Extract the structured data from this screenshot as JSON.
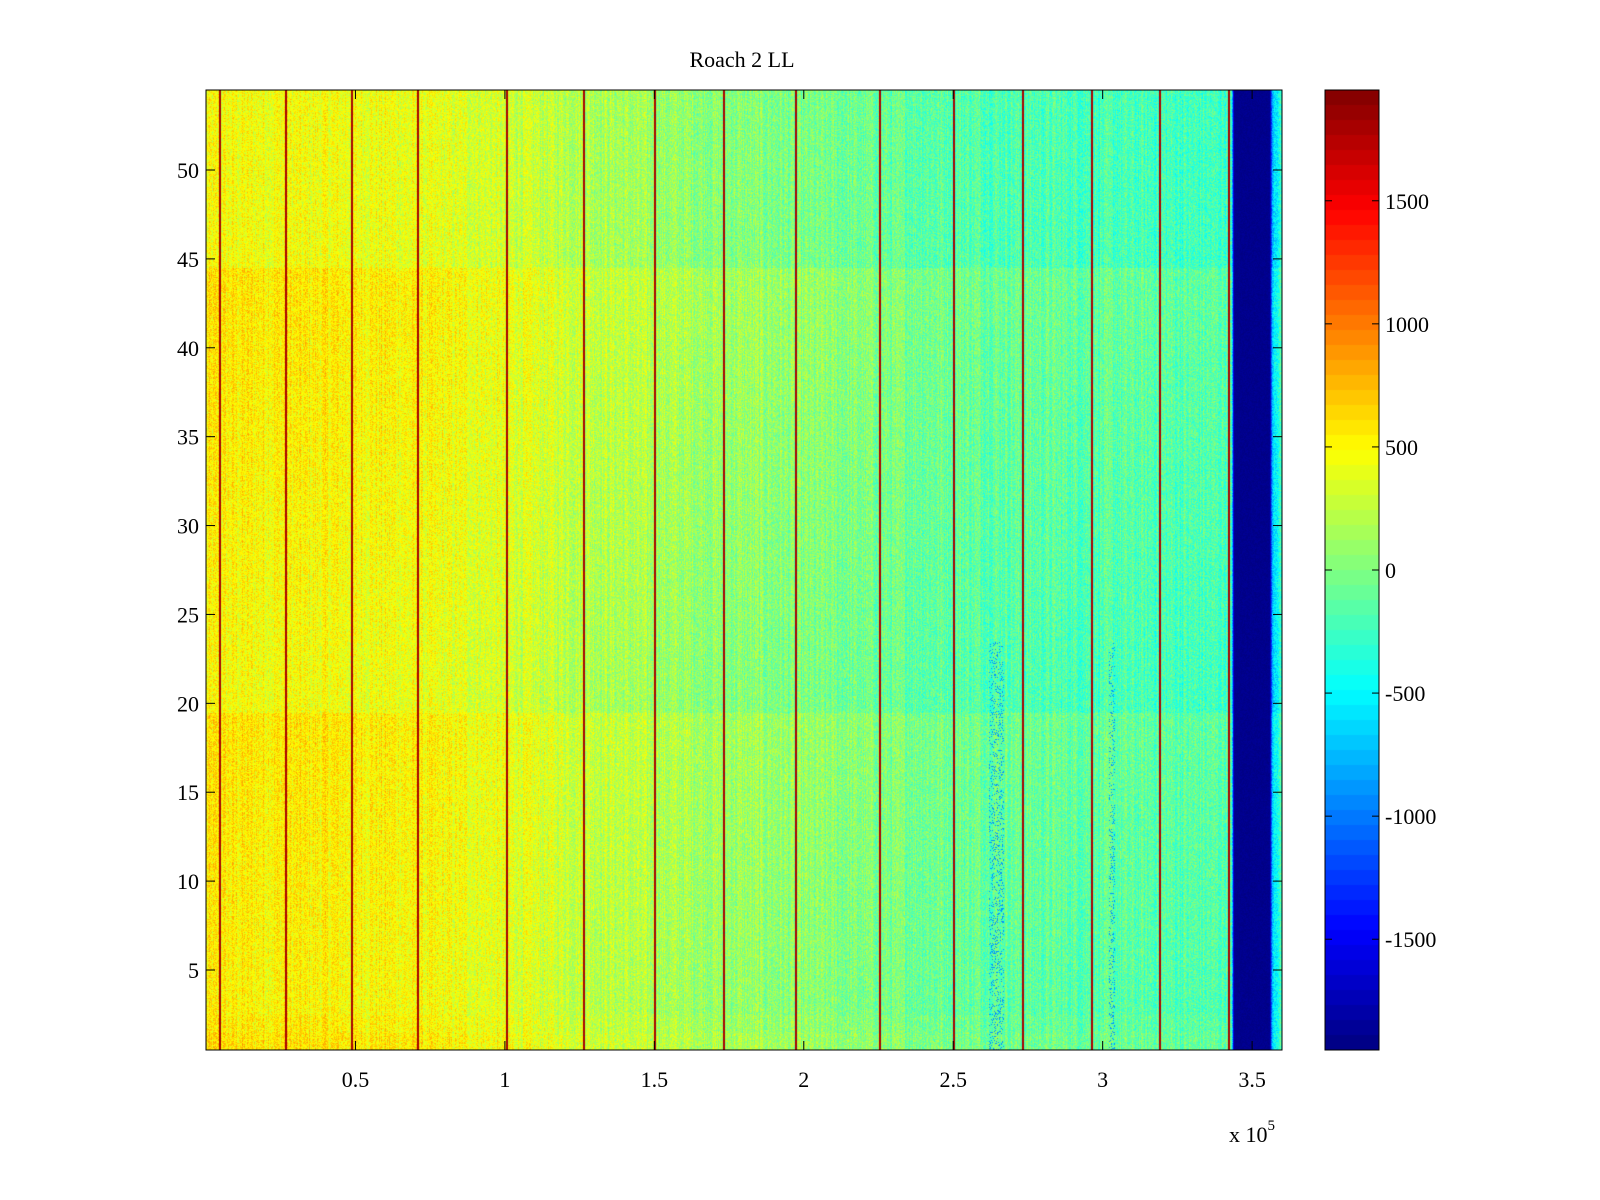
{
  "chart_data": {
    "type": "heatmap",
    "title": "Roach 2 LL",
    "xlabel": "",
    "ylabel": "",
    "x_exponent_label": {
      "base": "x 10",
      "exp": "5"
    },
    "xlim": [
      0,
      360000
    ],
    "ylim": [
      0.5,
      54.5
    ],
    "x_ticks": [
      50000,
      100000,
      150000,
      200000,
      250000,
      300000,
      350000
    ],
    "x_tick_labels": [
      "0.5",
      "1",
      "1.5",
      "2",
      "2.5",
      "3",
      "3.5"
    ],
    "y_ticks": [
      5,
      10,
      15,
      20,
      25,
      30,
      35,
      40,
      45,
      50
    ],
    "y_tick_labels": [
      "5",
      "10",
      "15",
      "20",
      "25",
      "30",
      "35",
      "40",
      "45",
      "50"
    ],
    "rows": 54,
    "colorbar": {
      "limits": [
        -1950,
        1950
      ],
      "ticks": [
        -1500,
        -1000,
        -500,
        0,
        500,
        1000,
        1500
      ],
      "tick_labels": [
        "-1500",
        "-1000",
        "-500",
        "0",
        "500",
        "1000",
        "1500"
      ],
      "colormap": "jet"
    },
    "column_profile": [
      {
        "x": 0,
        "value": 480
      },
      {
        "x": 60000,
        "value": 450
      },
      {
        "x": 100000,
        "value": 330
      },
      {
        "x": 150000,
        "value": 120
      },
      {
        "x": 200000,
        "value": -20
      },
      {
        "x": 250000,
        "value": -130
      },
      {
        "x": 300000,
        "value": -200
      },
      {
        "x": 343000,
        "value": -230
      },
      {
        "x": 344000,
        "value": -1900
      },
      {
        "x": 356000,
        "value": -1900
      },
      {
        "x": 357000,
        "value": -600
      },
      {
        "x": 360000,
        "value": -300
      }
    ],
    "row_profile": [
      {
        "row": 1,
        "offset": 150
      },
      {
        "row": 3,
        "offset": 60
      },
      {
        "row": 22,
        "offset": 40
      },
      {
        "row": 42,
        "offset": 50
      },
      {
        "row": 54,
        "offset": 0
      }
    ],
    "high_lines_x": [
      4500,
      26500,
      48500,
      70500,
      100500,
      126000,
      150000,
      173000,
      197000,
      225000,
      250000,
      273000,
      296000,
      319000,
      342000
    ],
    "high_line_value": 1800,
    "low_features": [
      {
        "x_start": 262000,
        "x_end": 267000,
        "row_start": 1,
        "row_end": 23,
        "value": -900
      },
      {
        "x_start": 302000,
        "x_end": 304000,
        "row_start": 1,
        "row_end": 23,
        "value": -900
      }
    ]
  }
}
